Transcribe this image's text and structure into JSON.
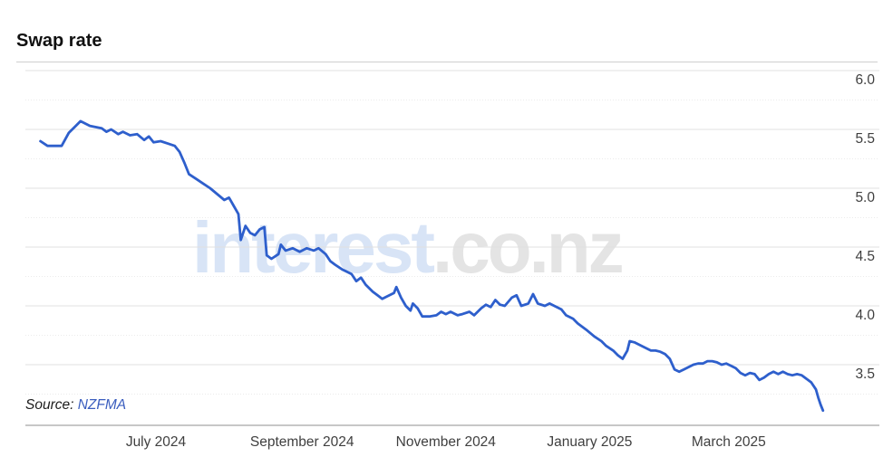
{
  "page": {
    "title": "Swap rate"
  },
  "watermark": {
    "part1": "interest",
    "part2": ".co.nz"
  },
  "source": {
    "label": "Source:",
    "link_text": "NZFMA"
  },
  "colors": {
    "series": "#2e5fcc",
    "grid_major": "#e0e0e0",
    "grid_minor": "#ebebeb",
    "axis_line": "#8f8f8f",
    "tick_text": "#3f3f3f",
    "source_link": "#3a5dbe"
  },
  "chart_data": {
    "type": "line",
    "title": "Swap rate",
    "xlabel": "",
    "ylabel": "",
    "legend": "none",
    "grid": "horizontal, major solid + minor dotted",
    "ylim": [
      3.0,
      6.0
    ],
    "y_ticks": [
      {
        "value": 6.0,
        "label": "6.0"
      },
      {
        "value": 5.5,
        "label": "5.5"
      },
      {
        "value": 5.0,
        "label": "5.0"
      },
      {
        "value": 4.5,
        "label": "4.5"
      },
      {
        "value": 4.0,
        "label": "4.0"
      },
      {
        "value": 3.5,
        "label": "3.5"
      }
    ],
    "y_minor_ticks": [
      5.75,
      5.25,
      4.75,
      4.25,
      3.75,
      3.25
    ],
    "x_ticks": [
      {
        "date": "2024-07-01",
        "label": "July 2024"
      },
      {
        "date": "2024-09-01",
        "label": "September 2024"
      },
      {
        "date": "2024-11-01",
        "label": "November 2024"
      },
      {
        "date": "2025-01-01",
        "label": "January 2025"
      },
      {
        "date": "2025-03-01",
        "label": "March 2025"
      }
    ],
    "x_range": [
      "2024-05-13",
      "2025-04-10"
    ],
    "points": [
      [
        "2024-05-13",
        5.4
      ],
      [
        "2024-05-16",
        5.36
      ],
      [
        "2024-05-22",
        5.36
      ],
      [
        "2024-05-25",
        5.47
      ],
      [
        "2024-05-28",
        5.53
      ],
      [
        "2024-05-30",
        5.57
      ],
      [
        "2024-06-03",
        5.53
      ],
      [
        "2024-06-08",
        5.51
      ],
      [
        "2024-06-10",
        5.48
      ],
      [
        "2024-06-12",
        5.5
      ],
      [
        "2024-06-15",
        5.46
      ],
      [
        "2024-06-17",
        5.48
      ],
      [
        "2024-06-20",
        5.45
      ],
      [
        "2024-06-23",
        5.46
      ],
      [
        "2024-06-26",
        5.41
      ],
      [
        "2024-06-28",
        5.44
      ],
      [
        "2024-06-30",
        5.39
      ],
      [
        "2024-07-03",
        5.4
      ],
      [
        "2024-07-06",
        5.38
      ],
      [
        "2024-07-09",
        5.36
      ],
      [
        "2024-07-11",
        5.31
      ],
      [
        "2024-07-13",
        5.22
      ],
      [
        "2024-07-15",
        5.12
      ],
      [
        "2024-07-18",
        5.08
      ],
      [
        "2024-07-21",
        5.04
      ],
      [
        "2024-07-24",
        5.0
      ],
      [
        "2024-07-27",
        4.95
      ],
      [
        "2024-07-30",
        4.9
      ],
      [
        "2024-08-01",
        4.92
      ],
      [
        "2024-08-03",
        4.85
      ],
      [
        "2024-08-05",
        4.78
      ],
      [
        "2024-08-06",
        4.56
      ],
      [
        "2024-08-08",
        4.68
      ],
      [
        "2024-08-10",
        4.62
      ],
      [
        "2024-08-12",
        4.6
      ],
      [
        "2024-08-14",
        4.65
      ],
      [
        "2024-08-16",
        4.67
      ],
      [
        "2024-08-17",
        4.43
      ],
      [
        "2024-08-19",
        4.4
      ],
      [
        "2024-08-22",
        4.44
      ],
      [
        "2024-08-23",
        4.52
      ],
      [
        "2024-08-25",
        4.47
      ],
      [
        "2024-08-28",
        4.49
      ],
      [
        "2024-08-31",
        4.46
      ],
      [
        "2024-09-03",
        4.49
      ],
      [
        "2024-09-06",
        4.47
      ],
      [
        "2024-09-08",
        4.49
      ],
      [
        "2024-09-11",
        4.44
      ],
      [
        "2024-09-13",
        4.38
      ],
      [
        "2024-09-15",
        4.35
      ],
      [
        "2024-09-18",
        4.31
      ],
      [
        "2024-09-20",
        4.29
      ],
      [
        "2024-09-22",
        4.27
      ],
      [
        "2024-09-24",
        4.21
      ],
      [
        "2024-09-26",
        4.24
      ],
      [
        "2024-09-28",
        4.18
      ],
      [
        "2024-10-01",
        4.12
      ],
      [
        "2024-10-03",
        4.09
      ],
      [
        "2024-10-05",
        4.06
      ],
      [
        "2024-10-07",
        4.08
      ],
      [
        "2024-10-10",
        4.11
      ],
      [
        "2024-10-11",
        4.16
      ],
      [
        "2024-10-13",
        4.07
      ],
      [
        "2024-10-15",
        4.0
      ],
      [
        "2024-10-17",
        3.96
      ],
      [
        "2024-10-18",
        4.02
      ],
      [
        "2024-10-20",
        3.98
      ],
      [
        "2024-10-22",
        3.91
      ],
      [
        "2024-10-25",
        3.91
      ],
      [
        "2024-10-28",
        3.92
      ],
      [
        "2024-10-30",
        3.95
      ],
      [
        "2024-11-01",
        3.93
      ],
      [
        "2024-11-03",
        3.95
      ],
      [
        "2024-11-06",
        3.92
      ],
      [
        "2024-11-08",
        3.93
      ],
      [
        "2024-11-11",
        3.95
      ],
      [
        "2024-11-13",
        3.92
      ],
      [
        "2024-11-16",
        3.98
      ],
      [
        "2024-11-18",
        4.01
      ],
      [
        "2024-11-20",
        3.99
      ],
      [
        "2024-11-22",
        4.05
      ],
      [
        "2024-11-24",
        4.01
      ],
      [
        "2024-11-26",
        4.0
      ],
      [
        "2024-11-29",
        4.07
      ],
      [
        "2024-12-01",
        4.09
      ],
      [
        "2024-12-03",
        4.0
      ],
      [
        "2024-12-06",
        4.02
      ],
      [
        "2024-12-08",
        4.1
      ],
      [
        "2024-12-10",
        4.02
      ],
      [
        "2024-12-13",
        4.0
      ],
      [
        "2024-12-15",
        4.02
      ],
      [
        "2024-12-17",
        4.0
      ],
      [
        "2024-12-20",
        3.97
      ],
      [
        "2024-12-22",
        3.92
      ],
      [
        "2024-12-25",
        3.89
      ],
      [
        "2024-12-27",
        3.85
      ],
      [
        "2024-12-31",
        3.79
      ],
      [
        "2025-01-03",
        3.74
      ],
      [
        "2025-01-06",
        3.7
      ],
      [
        "2025-01-08",
        3.66
      ],
      [
        "2025-01-11",
        3.62
      ],
      [
        "2025-01-13",
        3.58
      ],
      [
        "2025-01-15",
        3.55
      ],
      [
        "2025-01-17",
        3.62
      ],
      [
        "2025-01-18",
        3.7
      ],
      [
        "2025-01-20",
        3.69
      ],
      [
        "2025-01-22",
        3.67
      ],
      [
        "2025-01-24",
        3.65
      ],
      [
        "2025-01-27",
        3.62
      ],
      [
        "2025-01-29",
        3.62
      ],
      [
        "2025-01-31",
        3.61
      ],
      [
        "2025-02-02",
        3.59
      ],
      [
        "2025-02-04",
        3.55
      ],
      [
        "2025-02-06",
        3.46
      ],
      [
        "2025-02-08",
        3.44
      ],
      [
        "2025-02-10",
        3.46
      ],
      [
        "2025-02-12",
        3.48
      ],
      [
        "2025-02-14",
        3.5
      ],
      [
        "2025-02-16",
        3.51
      ],
      [
        "2025-02-18",
        3.51
      ],
      [
        "2025-02-20",
        3.53
      ],
      [
        "2025-02-22",
        3.53
      ],
      [
        "2025-02-24",
        3.52
      ],
      [
        "2025-02-26",
        3.5
      ],
      [
        "2025-02-28",
        3.51
      ],
      [
        "2025-03-02",
        3.49
      ],
      [
        "2025-03-04",
        3.47
      ],
      [
        "2025-03-06",
        3.43
      ],
      [
        "2025-03-08",
        3.41
      ],
      [
        "2025-03-10",
        3.43
      ],
      [
        "2025-03-12",
        3.42
      ],
      [
        "2025-03-14",
        3.37
      ],
      [
        "2025-03-16",
        3.39
      ],
      [
        "2025-03-18",
        3.42
      ],
      [
        "2025-03-20",
        3.44
      ],
      [
        "2025-03-22",
        3.42
      ],
      [
        "2025-03-24",
        3.44
      ],
      [
        "2025-03-26",
        3.42
      ],
      [
        "2025-03-28",
        3.41
      ],
      [
        "2025-03-30",
        3.42
      ],
      [
        "2025-04-01",
        3.41
      ],
      [
        "2025-04-03",
        3.38
      ],
      [
        "2025-04-05",
        3.35
      ],
      [
        "2025-04-07",
        3.29
      ],
      [
        "2025-04-08",
        3.22
      ],
      [
        "2025-04-09",
        3.16
      ],
      [
        "2025-04-10",
        3.11
      ]
    ]
  }
}
